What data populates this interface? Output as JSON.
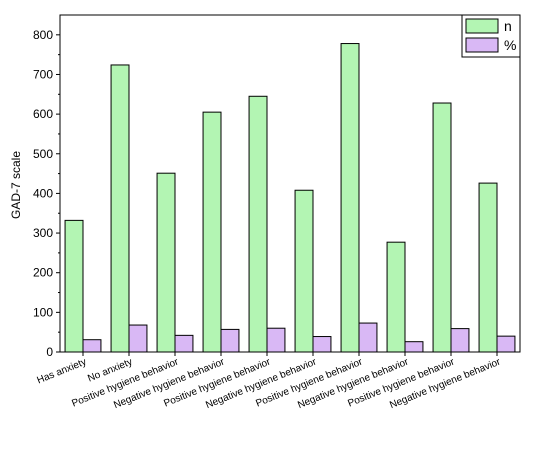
{
  "chart_data": {
    "type": "bar",
    "ylabel": "GAD-7 scale",
    "xlabel": "",
    "ylim": [
      0,
      850
    ],
    "yticks": [
      0,
      100,
      200,
      300,
      400,
      500,
      600,
      700,
      800
    ],
    "categories": [
      "Has anxiety",
      "No anxiety",
      "Positive hygiene behavior",
      "Negative hygiene behavior",
      "Positive hygiene behavior",
      "Negative hygiene behavior",
      "Positive hygiene behavior",
      "Negative hygiene behavior",
      "Positive hygiene behavior",
      "Negative hygiene behavior"
    ],
    "series": [
      {
        "name": "n",
        "color": "#b3f5b3",
        "values": [
          332,
          724,
          451,
          605,
          645,
          408,
          778,
          277,
          628,
          426
        ]
      },
      {
        "name": "%",
        "color": "#d9b8f5",
        "values": [
          31,
          68,
          42,
          57,
          60,
          39,
          73,
          26,
          59,
          40
        ]
      }
    ],
    "legend": "top-right",
    "grid": false
  }
}
